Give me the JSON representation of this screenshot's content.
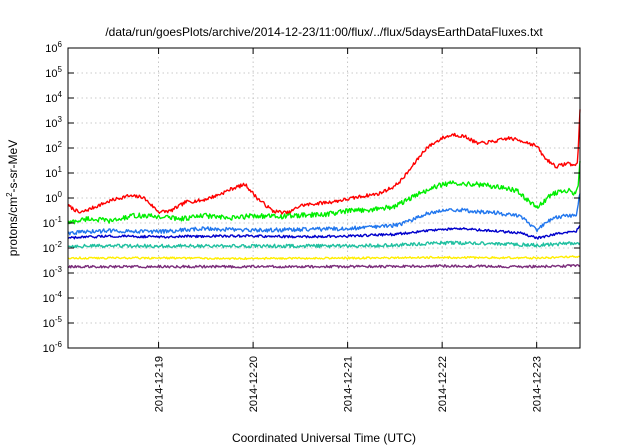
{
  "chart_data": {
    "type": "line",
    "title": "/data/run/goesPlots/archive/2014-12-23/11:00/flux/../flux/5daysEarthDataFluxes.txt",
    "xlabel": "Coordinated Universal Time (UTC)",
    "ylabel": {
      "base": "protons/cm",
      "sup": "2",
      "rest": "-s-sr-MeV"
    },
    "x_scale": "time",
    "x_range": [
      "2014-12-18 01:00",
      "2014-12-23 11:00"
    ],
    "x_ticks": [
      "2014-12-19",
      "2014-12-20",
      "2014-12-21",
      "2014-12-22",
      "2014-12-23"
    ],
    "y_scale": "log",
    "ylim": [
      1e-06,
      1000000.0
    ],
    "y_ticks": [
      {
        "base": "10",
        "exp": "-6",
        "value": 1e-06
      },
      {
        "base": "10",
        "exp": "-5",
        "value": 1e-05
      },
      {
        "base": "10",
        "exp": "-4",
        "value": 0.0001
      },
      {
        "base": "10",
        "exp": "-3",
        "value": 0.001
      },
      {
        "base": "10",
        "exp": "-2",
        "value": 0.01
      },
      {
        "base": "10",
        "exp": "-1",
        "value": 0.1
      },
      {
        "base": "10",
        "exp": "0",
        "value": 1
      },
      {
        "base": "10",
        "exp": "1",
        "value": 10
      },
      {
        "base": "10",
        "exp": "2",
        "value": 100
      },
      {
        "base": "10",
        "exp": "3",
        "value": 1000
      },
      {
        "base": "10",
        "exp": "4",
        "value": 10000
      },
      {
        "base": "10",
        "exp": "5",
        "value": 100000
      },
      {
        "base": "10",
        "exp": "6",
        "value": 1000000
      }
    ],
    "grid": true,
    "legend": "none",
    "series": [
      {
        "color": "#ff0000",
        "x": [
          "2014-12-18 01:00",
          "2014-12-18 04:00",
          "2014-12-18 08:00",
          "2014-12-18 12:00",
          "2014-12-18 16:00",
          "2014-12-18 20:00",
          "2014-12-19 00:00",
          "2014-12-19 03:00",
          "2014-12-19 07:00",
          "2014-12-19 11:00",
          "2014-12-19 15:00",
          "2014-12-19 19:00",
          "2014-12-19 22:00",
          "2014-12-20 01:00",
          "2014-12-20 05:00",
          "2014-12-20 09:00",
          "2014-12-20 12:00",
          "2014-12-20 16:00",
          "2014-12-20 20:00",
          "2014-12-21 00:00",
          "2014-12-21 04:00",
          "2014-12-21 08:00",
          "2014-12-21 12:00",
          "2014-12-21 14:00",
          "2014-12-21 16:00",
          "2014-12-21 18:00",
          "2014-12-21 20:00",
          "2014-12-22 00:00",
          "2014-12-22 03:00",
          "2014-12-22 06:00",
          "2014-12-22 09:00",
          "2014-12-22 13:00",
          "2014-12-22 17:00",
          "2014-12-22 21:00",
          "2014-12-23 00:00",
          "2014-12-23 02:00",
          "2014-12-23 05:00",
          "2014-12-23 08:00",
          "2014-12-23 09:30",
          "2014-12-23 10:00",
          "2014-12-23 10:20",
          "2014-12-23 10:40",
          "2014-12-23 11:00"
        ],
        "values": [
          0.5,
          0.25,
          0.45,
          0.8,
          1.2,
          1.1,
          0.28,
          0.3,
          0.7,
          0.8,
          1.3,
          2.5,
          3.5,
          1.0,
          0.3,
          0.25,
          0.5,
          0.6,
          0.7,
          0.9,
          1.2,
          1.5,
          3,
          6,
          15,
          40,
          100,
          250,
          350,
          280,
          150,
          180,
          250,
          180,
          120,
          40,
          18,
          25,
          20,
          20,
          30,
          200,
          3500
        ]
      },
      {
        "color": "#00ee00",
        "x": [
          "2014-12-18 01:00",
          "2014-12-18 06:00",
          "2014-12-18 12:00",
          "2014-12-18 18:00",
          "2014-12-19 00:00",
          "2014-12-19 06:00",
          "2014-12-19 12:00",
          "2014-12-19 18:00",
          "2014-12-20 00:00",
          "2014-12-20 06:00",
          "2014-12-20 12:00",
          "2014-12-20 18:00",
          "2014-12-21 00:00",
          "2014-12-21 06:00",
          "2014-12-21 12:00",
          "2014-12-21 16:00",
          "2014-12-21 20:00",
          "2014-12-22 00:00",
          "2014-12-22 04:00",
          "2014-12-22 09:00",
          "2014-12-22 14:00",
          "2014-12-22 19:00",
          "2014-12-23 00:00",
          "2014-12-23 04:00",
          "2014-12-23 08:00",
          "2014-12-23 10:00",
          "2014-12-23 10:30",
          "2014-12-23 11:00"
        ],
        "values": [
          0.1,
          0.15,
          0.12,
          0.2,
          0.18,
          0.15,
          0.2,
          0.15,
          0.2,
          0.18,
          0.2,
          0.22,
          0.3,
          0.35,
          0.45,
          1.0,
          2.0,
          3.5,
          4.0,
          3.5,
          2.8,
          2.0,
          0.4,
          1.5,
          2.0,
          1.5,
          3,
          30
        ]
      },
      {
        "color": "#2277ee",
        "x": [
          "2014-12-18 01:00",
          "2014-12-18 12:00",
          "2014-12-19 00:00",
          "2014-12-19 12:00",
          "2014-12-20 00:00",
          "2014-12-20 12:00",
          "2014-12-21 00:00",
          "2014-12-21 12:00",
          "2014-12-21 16:00",
          "2014-12-21 20:00",
          "2014-12-22 02:00",
          "2014-12-22 08:00",
          "2014-12-22 14:00",
          "2014-12-22 20:00",
          "2014-12-23 00:00",
          "2014-12-23 04:00",
          "2014-12-23 08:00",
          "2014-12-23 10:00",
          "2014-12-23 11:00"
        ],
        "values": [
          0.04,
          0.05,
          0.045,
          0.06,
          0.05,
          0.055,
          0.06,
          0.08,
          0.12,
          0.25,
          0.35,
          0.3,
          0.25,
          0.18,
          0.05,
          0.15,
          0.2,
          0.2,
          1.5
        ]
      },
      {
        "color": "#0000cc",
        "x": [
          "2014-12-18 01:00",
          "2014-12-18 12:00",
          "2014-12-19 00:00",
          "2014-12-19 12:00",
          "2014-12-20 00:00",
          "2014-12-20 12:00",
          "2014-12-21 00:00",
          "2014-12-21 12:00",
          "2014-12-21 20:00",
          "2014-12-22 04:00",
          "2014-12-22 12:00",
          "2014-12-22 20:00",
          "2014-12-23 00:00",
          "2014-12-23 06:00",
          "2014-12-23 10:00",
          "2014-12-23 11:00"
        ],
        "values": [
          0.025,
          0.03,
          0.028,
          0.03,
          0.03,
          0.028,
          0.03,
          0.035,
          0.05,
          0.06,
          0.05,
          0.04,
          0.025,
          0.04,
          0.045,
          0.08
        ]
      },
      {
        "color": "#20c0a0",
        "x": [
          "2014-12-18 01:00",
          "2014-12-19 00:00",
          "2014-12-20 00:00",
          "2014-12-21 00:00",
          "2014-12-21 12:00",
          "2014-12-22 00:00",
          "2014-12-22 12:00",
          "2014-12-23 00:00",
          "2014-12-23 11:00"
        ],
        "values": [
          0.012,
          0.012,
          0.012,
          0.012,
          0.013,
          0.016,
          0.015,
          0.013,
          0.016
        ]
      },
      {
        "color": "#ffee00",
        "x": [
          "2014-12-18 01:00",
          "2014-12-19 00:00",
          "2014-12-20 00:00",
          "2014-12-21 00:00",
          "2014-12-22 00:00",
          "2014-12-23 00:00",
          "2014-12-23 11:00"
        ],
        "values": [
          0.004,
          0.004,
          0.0038,
          0.004,
          0.0042,
          0.004,
          0.0045
        ]
      },
      {
        "color": "#7b2d7b",
        "x": [
          "2014-12-18 01:00",
          "2014-12-19 00:00",
          "2014-12-20 00:00",
          "2014-12-21 00:00",
          "2014-12-22 00:00",
          "2014-12-23 00:00",
          "2014-12-23 11:00"
        ],
        "values": [
          0.0018,
          0.0018,
          0.0018,
          0.0018,
          0.0019,
          0.0018,
          0.002
        ]
      }
    ]
  }
}
